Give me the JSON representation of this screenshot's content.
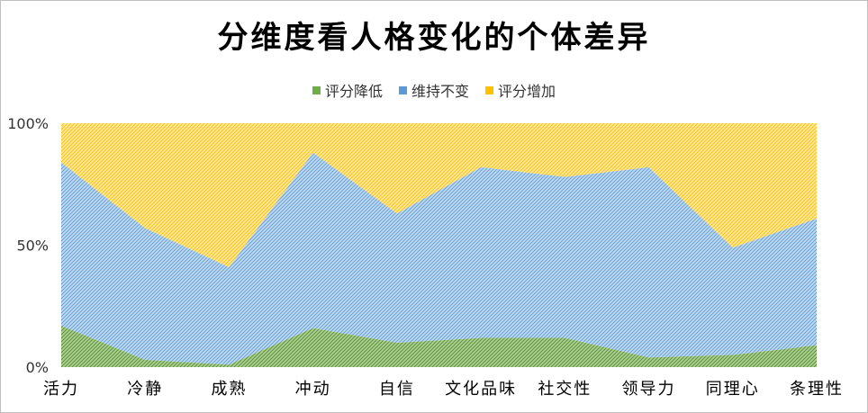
{
  "chart_data": {
    "type": "area",
    "stacked_percent": true,
    "title": "分维度看人格变化的个体差异",
    "categories": [
      "活力",
      "冷静",
      "成熟",
      "冲动",
      "自信",
      "文化品味",
      "社交性",
      "领导力",
      "同理心",
      "条理性"
    ],
    "series": [
      {
        "name": "评分降低",
        "color": "#70ad47",
        "values": [
          17,
          3,
          1,
          16,
          10,
          12,
          12,
          4,
          5,
          9
        ]
      },
      {
        "name": "维持不变",
        "color": "#5b9bd5",
        "values": [
          67,
          54,
          40,
          72,
          53,
          70,
          66,
          78,
          44,
          52
        ]
      },
      {
        "name": "评分增加",
        "color": "#ffc000",
        "values": [
          16,
          43,
          59,
          12,
          37,
          18,
          22,
          18,
          51,
          39
        ]
      }
    ],
    "ylim": [
      0,
      100
    ],
    "yticks": [
      "0%",
      "50%",
      "100%"
    ],
    "legend_position": "top"
  }
}
